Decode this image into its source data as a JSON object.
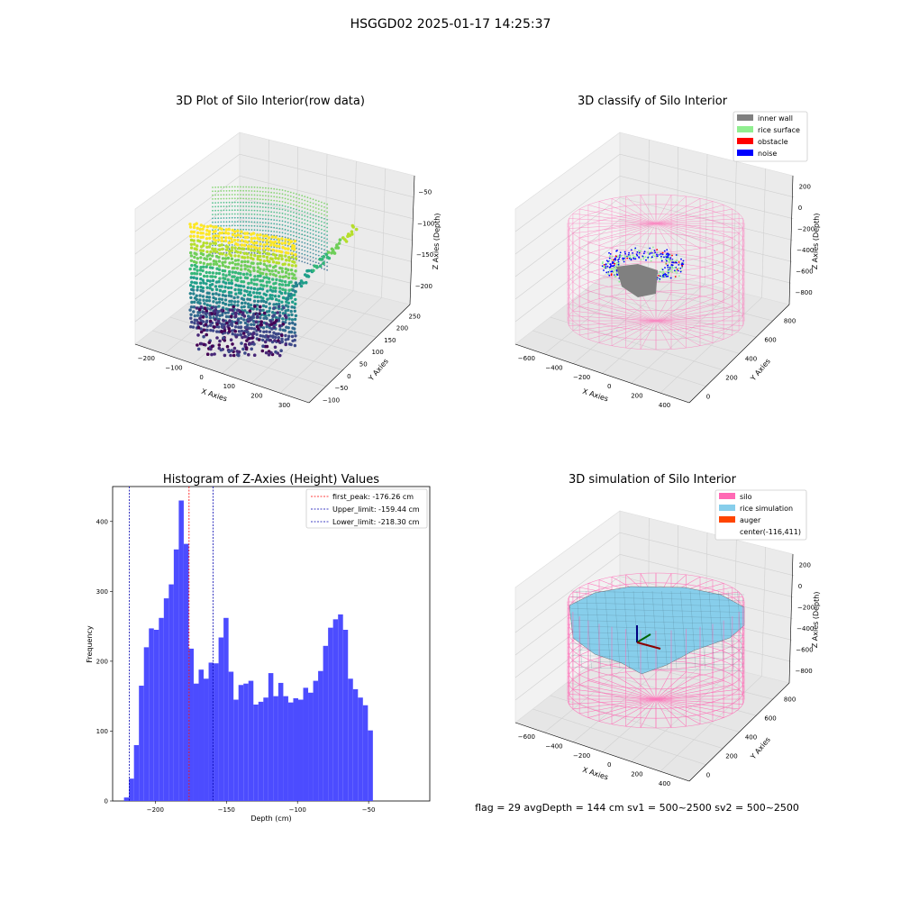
{
  "suptitle": "HSGGD02 2025-01-17 14:25:37",
  "footer": "flag = 29  avgDepth = 144 cm  sv1 = 500~2500  sv2 = 500~2500",
  "colors": {
    "hist_bar": "#4c4cff",
    "first_peak": "#ff0000",
    "limits": "#0000b0",
    "silo": "#ff69b4",
    "rice": "#87ceeb",
    "auger": "#ff4500",
    "inner_wall": "#808080",
    "rice_surface": "#90ee90",
    "obstacle": "#ff0000",
    "noise": "#0000ff"
  },
  "chart_data": [
    {
      "type": "scatter",
      "dims": "3d",
      "title": "3D Plot of Silo Interior(row data)",
      "xlabel": "X Axies",
      "ylabel": "Y Axies",
      "zlabel": "Z Axies (Depth)",
      "x_ticks": [
        "−200",
        "−100",
        "0",
        "100",
        "200",
        "300"
      ],
      "y_ticks": [
        "−100",
        "−50",
        "0",
        "50",
        "100",
        "150",
        "200",
        "250"
      ],
      "z_ticks": [
        "−50",
        "−100",
        "−150",
        "−200"
      ],
      "colormap": "viridis"
    },
    {
      "type": "scatter",
      "dims": "3d",
      "title": "3D classify of Silo Interior",
      "xlabel": "X Axies",
      "ylabel": "Y Axies",
      "zlabel": "Z Axies (Depth)",
      "x_ticks": [
        "−600",
        "−400",
        "−200",
        "0",
        "200",
        "400"
      ],
      "y_ticks": [
        "0",
        "200",
        "400",
        "600",
        "800"
      ],
      "z_ticks": [
        "200",
        "0",
        "−200",
        "−400",
        "−600",
        "−800"
      ],
      "legend": [
        "inner wall",
        "rice surface",
        "obstacle",
        "noise"
      ],
      "legend_position": "top-right"
    },
    {
      "type": "bar",
      "title": "Histogram of Z-Axies (Height) Values",
      "xlabel": "Depth (cm)",
      "ylabel": "Frequency",
      "xlim": [
        -230,
        -7
      ],
      "ylim": [
        0,
        450
      ],
      "x_ticks": [
        -200,
        -150,
        -100,
        -50
      ],
      "x_tick_labels": [
        "−200",
        "−150",
        "−100",
        "−50"
      ],
      "y_ticks": [
        0,
        100,
        200,
        300,
        400
      ],
      "bin_start": -222,
      "bin_width": 3.5,
      "values": [
        5,
        32,
        80,
        165,
        220,
        247,
        245,
        262,
        290,
        310,
        360,
        430,
        368,
        218,
        168,
        188,
        175,
        198,
        197,
        234,
        262,
        185,
        145,
        166,
        168,
        172,
        138,
        142,
        148,
        183,
        150,
        169,
        150,
        141,
        147,
        145,
        162,
        155,
        172,
        186,
        222,
        248,
        260,
        267,
        245,
        175,
        160,
        148,
        137,
        101
      ],
      "lines": [
        {
          "label": "first_peak: -176.26 cm",
          "x": -176.26,
          "color": "#ff0000"
        },
        {
          "label": "Upper_limit: -159.44 cm",
          "x": -159.44,
          "color": "#0000b0"
        },
        {
          "label": "Lower_limit: -218.30 cm",
          "x": -218.3,
          "color": "#0000b0"
        }
      ],
      "legend_position": "top-right"
    },
    {
      "type": "surface",
      "dims": "3d",
      "title": "3D simulation of Silo Interior",
      "xlabel": "X Axies",
      "ylabel": "Y Axies",
      "zlabel": "Z Axies (Depth)",
      "x_ticks": [
        "−600",
        "−400",
        "−200",
        "0",
        "200",
        "400"
      ],
      "y_ticks": [
        "0",
        "200",
        "400",
        "600",
        "800"
      ],
      "z_ticks": [
        "200",
        "0",
        "−200",
        "−400",
        "−600",
        "−800"
      ],
      "legend": [
        "silo",
        "rice simulation",
        "auger",
        "center(-116,411)"
      ],
      "legend_position": "top-right"
    }
  ]
}
